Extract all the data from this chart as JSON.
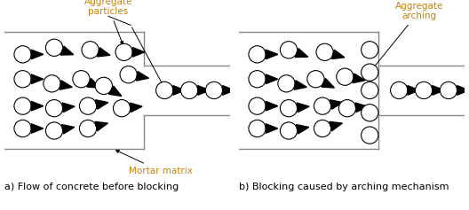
{
  "label_a": "a) Flow of concrete before blocking",
  "label_b": "b) Blocking caused by arching mechanism",
  "annotation_agg_particles": "Aggregate\nparticles",
  "annotation_mortar": "Mortar matrix",
  "annotation_arching": "Aggregate\narching",
  "annotation_color": "#c8820a",
  "line_color": "#888888",
  "background_color": "white",
  "fig_width": 5.28,
  "fig_height": 2.37,
  "label_fontsize": 8.0,
  "annot_fontsize": 7.5
}
